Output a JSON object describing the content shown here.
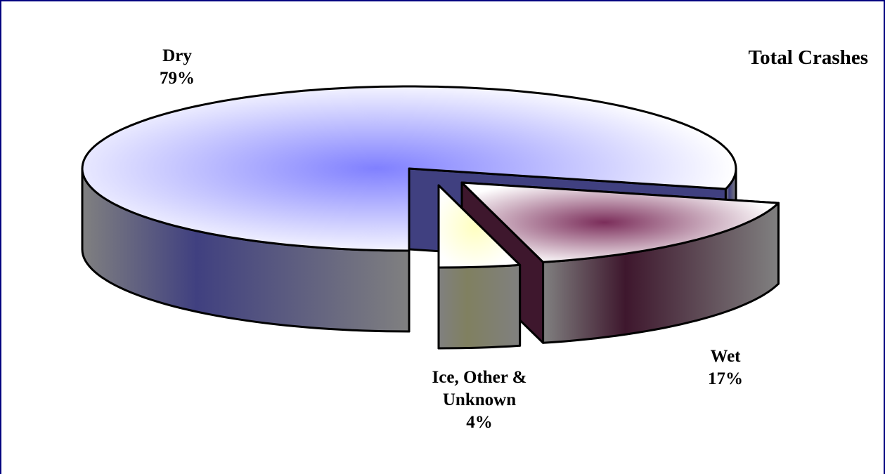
{
  "chart_data": {
    "type": "pie3d",
    "title": "Total Crashes",
    "categories": [
      "Dry",
      "Wet",
      "Ice, Other & Unknown"
    ],
    "values": [
      79,
      17,
      4
    ],
    "value_labels": [
      "79%",
      "17%",
      "4%"
    ],
    "colors": [
      "#8080ff",
      "#7b2d5a",
      "#ffffc0"
    ]
  }
}
